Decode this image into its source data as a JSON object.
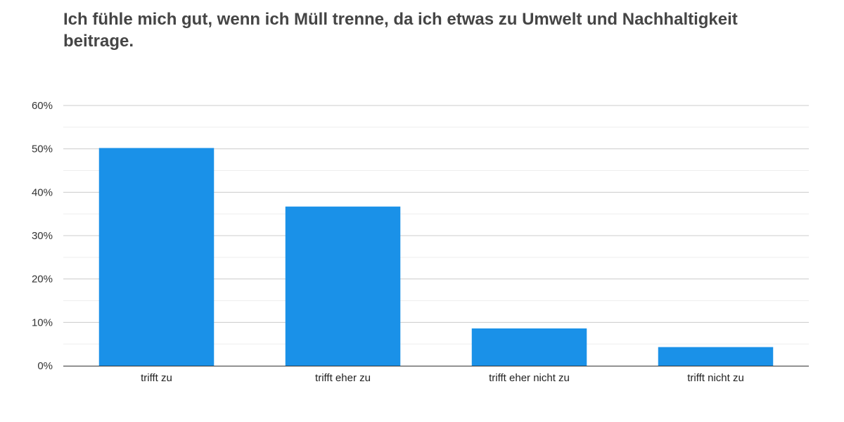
{
  "chart_data": {
    "type": "bar",
    "title": "Ich fühle mich gut, wenn ich Müll trenne, da ich etwas zu Umwelt und Nachhaltigkeit beitrage.",
    "categories": [
      "trifft zu",
      "trifft eher zu",
      "trifft eher nicht zu",
      "trifft nicht zu"
    ],
    "values": [
      50.2,
      36.7,
      8.6,
      4.3
    ],
    "xlabel": "",
    "ylabel": "",
    "ylim": [
      0,
      60
    ],
    "yticks": [
      0,
      10,
      20,
      30,
      40,
      50,
      60
    ],
    "ytick_labels": [
      "0%",
      "10%",
      "20%",
      "30%",
      "40%",
      "50%",
      "60%"
    ],
    "grid": true,
    "colors": {
      "bar": "#1a91e8",
      "grid_major": "#cccccc",
      "grid_minor": "#eeeeee",
      "axis": "#333333"
    }
  }
}
